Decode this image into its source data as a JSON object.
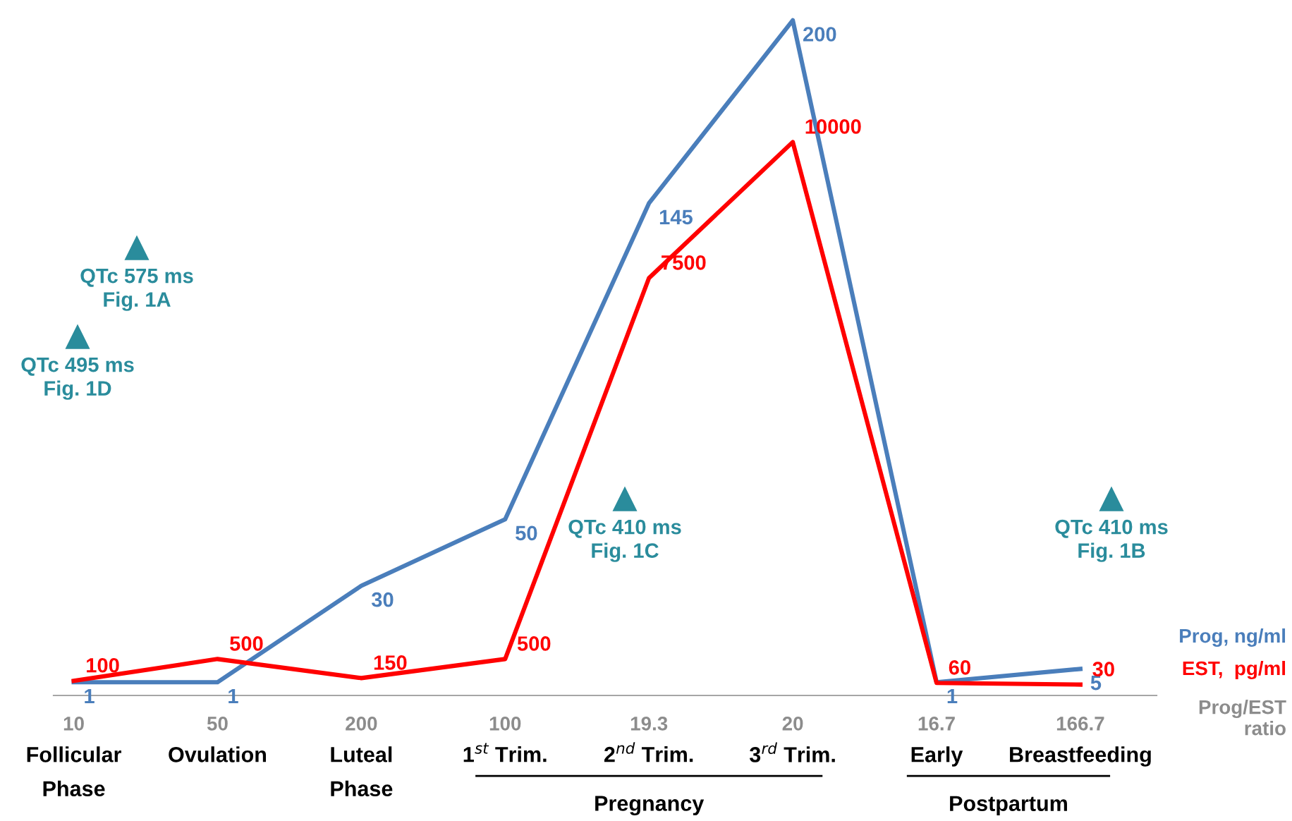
{
  "chart_data": {
    "type": "line",
    "categories": [
      "Follicular\nPhase",
      "Ovulation",
      "Luteal\nPhase",
      "1$^{st}$ Trim.",
      "2$^{nd}$ Trim.",
      "3$^{rd}$ Trim.",
      "Early",
      "Breastfeeding"
    ],
    "series": [
      {
        "name": "Prog, ng/ml",
        "color": "#4a7ebb",
        "values": [
          1,
          1,
          30,
          50,
          145,
          200,
          1,
          5
        ]
      },
      {
        "name": "EST,  pg/ml",
        "color": "#ff0000",
        "axis": "y2",
        "values": [
          100,
          500,
          150,
          500,
          7500,
          10000,
          60,
          30
        ]
      }
    ],
    "data_labels": true,
    "tick_labels": "x",
    "grid": false,
    "legend": false,
    "marker": "none",
    "line_style": "solid",
    "annotations": [
      "10",
      "50",
      "200",
      "100",
      "19.3",
      "20",
      "16.7",
      "166.7",
      "Prog/EST\nratio",
      "QTc 575 ms\nFig. 1A",
      "QTc 495 ms\nFig. 1D",
      "QTc 410 ms\nFig. 1C",
      "QTc 410 ms\nFig. 1B",
      "Pregnancy",
      "Postpartum"
    ]
  }
}
